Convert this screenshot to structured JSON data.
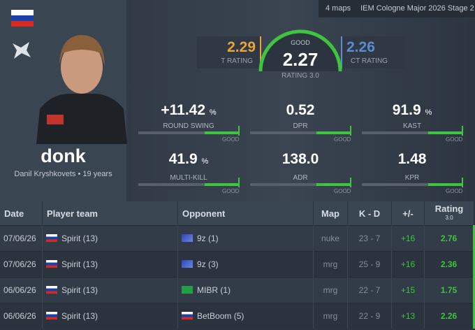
{
  "header": {
    "maps": "4 maps",
    "event": "IEM Cologne Major 2026 Stage 2"
  },
  "player": {
    "nickname": "donk",
    "name": "Danil Kryshkovets",
    "separator": "•",
    "age": "19 years"
  },
  "rating": {
    "t": {
      "value": "2.29",
      "label": "T RATING"
    },
    "main": {
      "grade": "GOOD",
      "value": "2.27",
      "label": "RATING 3.0"
    },
    "ct": {
      "value": "2.26",
      "label": "CT RATING"
    }
  },
  "stats": [
    {
      "value": "+11.42",
      "unit": "%",
      "label": "ROUND SWING",
      "grade": "GOOD"
    },
    {
      "value": "0.52",
      "label": "DPR",
      "grade": "GOOD"
    },
    {
      "value": "91.9",
      "unit": "%",
      "label": "KAST",
      "grade": "GOOD"
    },
    {
      "value": "41.9",
      "unit": "%",
      "label": "MULTI-KILL",
      "grade": "GOOD"
    },
    {
      "value": "138.0",
      "label": "ADR",
      "grade": "GOOD"
    },
    {
      "value": "1.48",
      "label": "KPR",
      "grade": "GOOD"
    }
  ],
  "table": {
    "headers": [
      "Date",
      "Player team",
      "Opponent",
      "Map",
      "K - D",
      "+/-",
      "Rating"
    ],
    "rating_version": "3.0",
    "rows": [
      {
        "date": "07/06/26",
        "team": "Spirit (13)",
        "opponent": "9z (1)",
        "map": "nuke",
        "kd": "23 - 7",
        "diff": "+16",
        "rating": "2.76"
      },
      {
        "date": "07/06/26",
        "team": "Spirit (13)",
        "opponent": "9z (3)",
        "map": "mrg",
        "kd": "25 - 9",
        "diff": "+16",
        "rating": "2.36"
      },
      {
        "date": "06/06/26",
        "team": "Spirit (13)",
        "opponent": "MIBR (1)",
        "map": "mrg",
        "kd": "22 - 7",
        "diff": "+15",
        "rating": "1.75"
      },
      {
        "date": "06/06/26",
        "team": "Spirit (13)",
        "opponent": "BetBoom (5)",
        "map": "mrg",
        "kd": "22 - 9",
        "diff": "+13",
        "rating": "2.26"
      }
    ]
  }
}
